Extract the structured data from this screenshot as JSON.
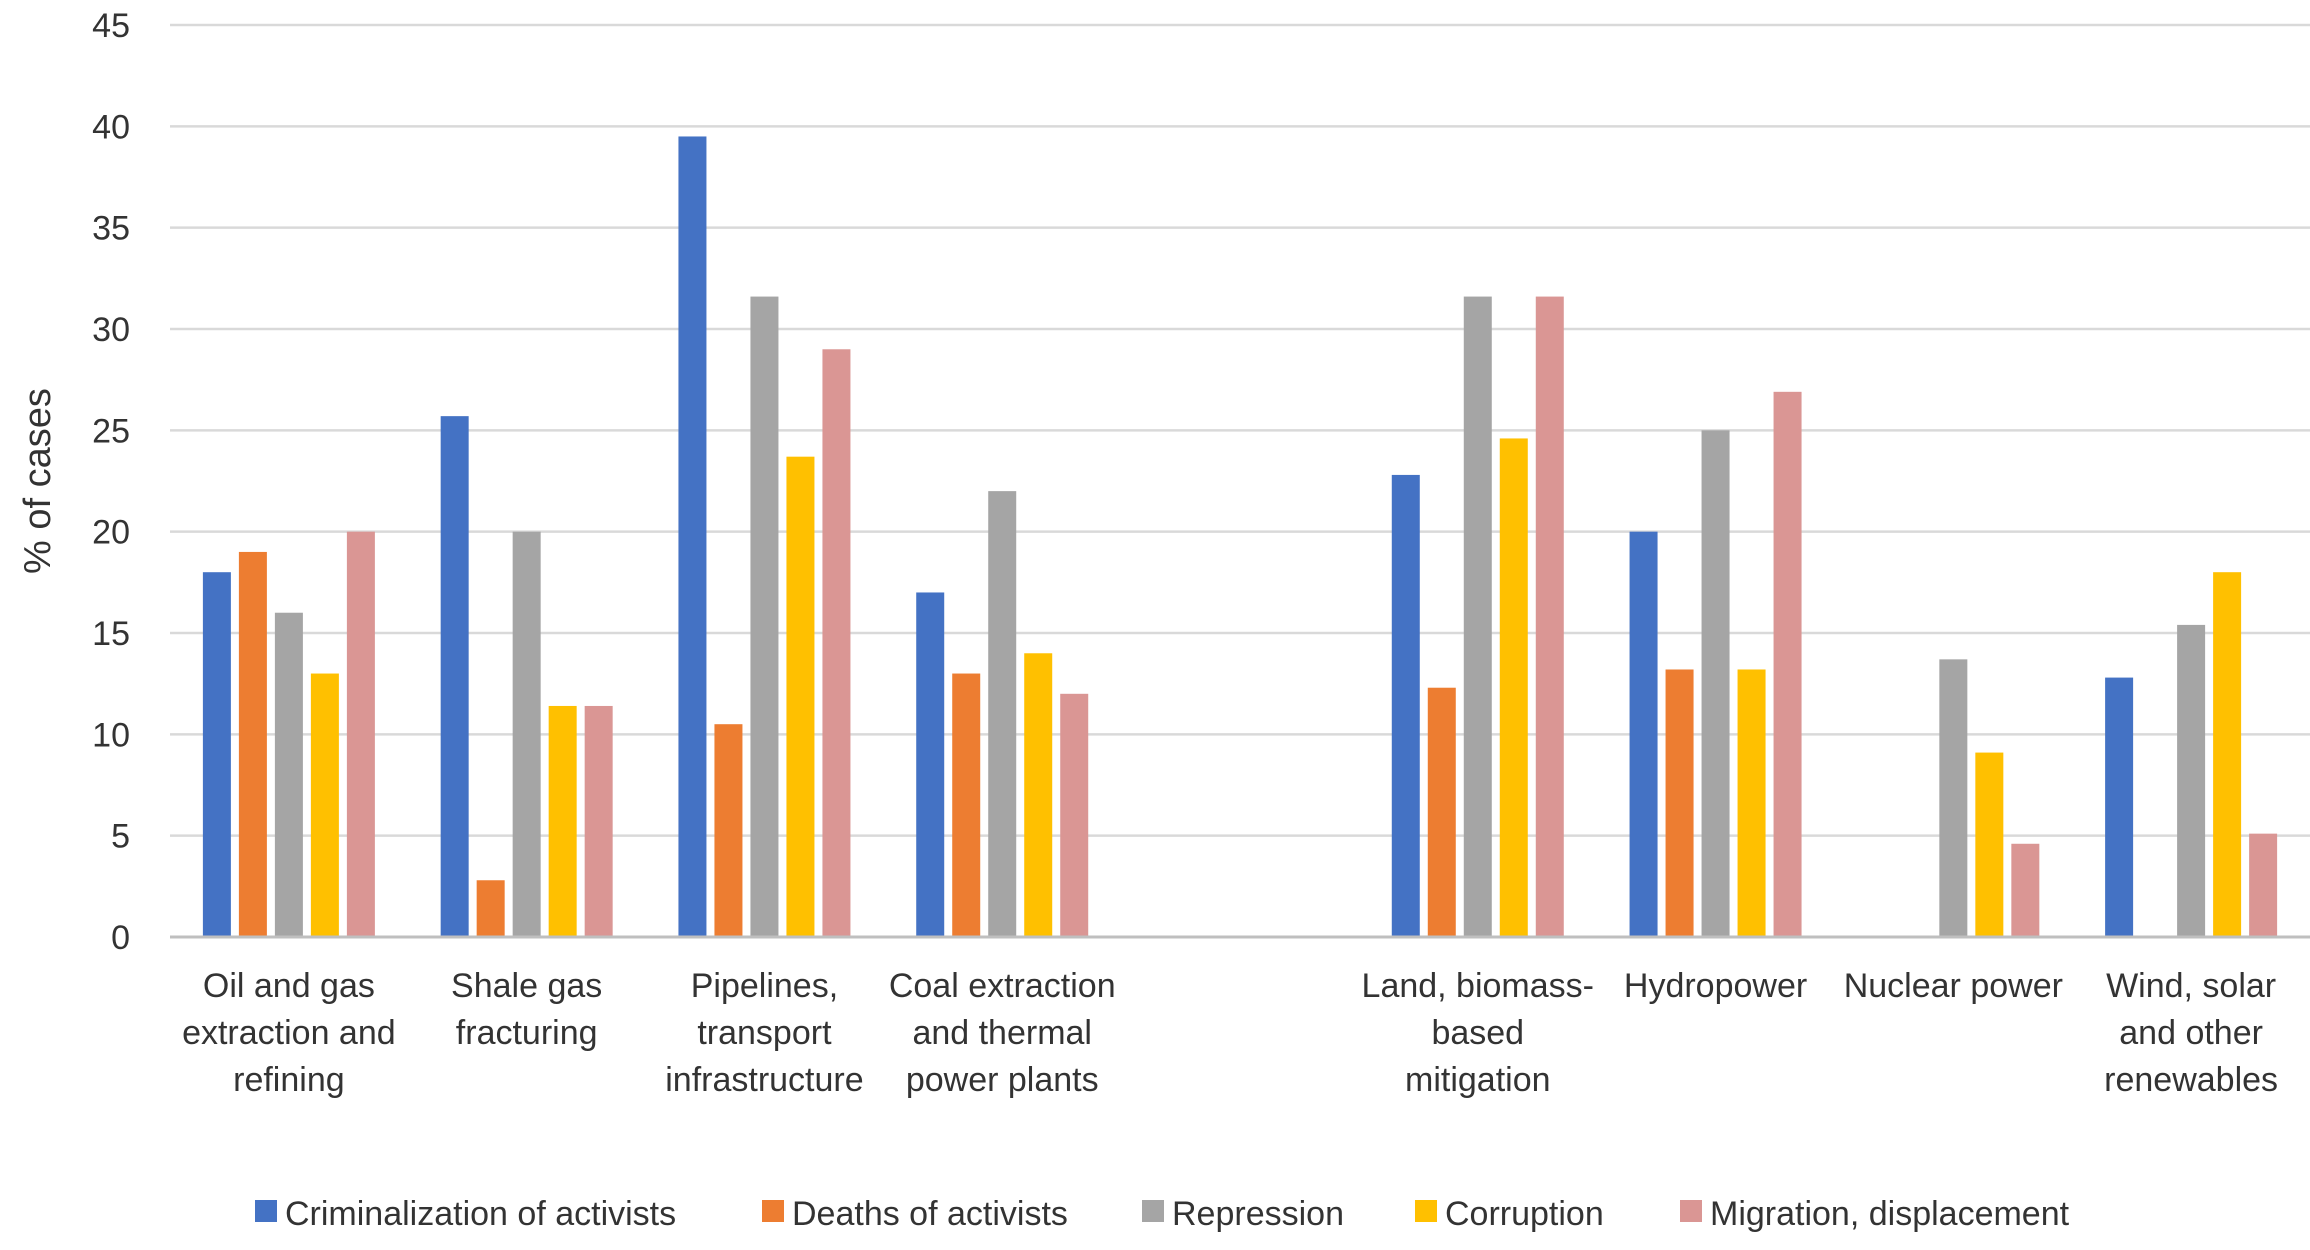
{
  "chart_data": {
    "type": "bar",
    "ylabel": "% of cases",
    "xlabel": "",
    "ylim": [
      0,
      45
    ],
    "yticks": [
      0,
      5,
      10,
      15,
      20,
      25,
      30,
      35,
      40,
      45
    ],
    "grid": true,
    "legend_position": "bottom",
    "categories": [
      [
        "Oil and gas",
        "extraction and",
        "refining"
      ],
      [
        "Shale gas",
        "fracturing"
      ],
      [
        "Pipelines,",
        "transport",
        "infrastructure"
      ],
      [
        "Coal extraction",
        "and thermal",
        "power plants"
      ],
      [],
      [
        "Land, biomass-",
        "based",
        "mitigation"
      ],
      [
        "Hydropower"
      ],
      [
        "Nuclear power"
      ],
      [
        "Wind, solar",
        "and other",
        "renewables"
      ]
    ],
    "series": [
      {
        "name": "Criminalization of activists",
        "color": "#4472C4",
        "values": [
          18,
          25.7,
          39.5,
          17,
          null,
          22.8,
          20,
          null,
          12.8
        ]
      },
      {
        "name": "Deaths of activists",
        "color": "#ED7D31",
        "values": [
          19,
          2.8,
          10.5,
          13,
          null,
          12.3,
          13.2,
          null,
          null
        ]
      },
      {
        "name": "Repression",
        "color": "#A5A5A5",
        "values": [
          16,
          20,
          31.6,
          22,
          null,
          31.6,
          25,
          13.7,
          15.4
        ]
      },
      {
        "name": "Corruption",
        "color": "#FFC000",
        "values": [
          13,
          11.4,
          23.7,
          14,
          null,
          24.6,
          13.2,
          9.1,
          18
        ]
      },
      {
        "name": "Migration, displacement",
        "color": "#DA9694",
        "values": [
          20,
          11.4,
          29,
          12,
          null,
          31.6,
          26.9,
          4.6,
          5.1
        ]
      }
    ]
  }
}
